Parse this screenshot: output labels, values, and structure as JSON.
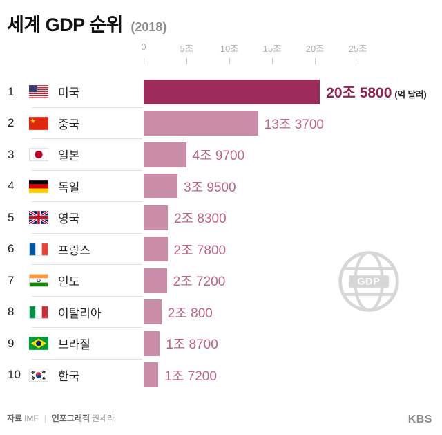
{
  "title": {
    "main": "세계 GDP 순위",
    "year": "(2018)"
  },
  "unit_note": "(억 달러)",
  "watermark": "GDP",
  "footer": {
    "source_label": "자료",
    "source_value": "IMF",
    "divider": "|",
    "credit_label": "인포그래픽",
    "credit_value": "권세라",
    "logo": "KBS"
  },
  "colors": {
    "bar_top": "#9C2B59",
    "bar_rest": "#C98DA8",
    "value_text": "#BE6487",
    "value_top_text": "#8E2450",
    "axis_text": "#B3B3B3"
  },
  "chart_data": {
    "type": "bar",
    "orientation": "horizontal",
    "title": "세계 GDP 순위 (2018)",
    "unit": "억 달러",
    "xlim": [
      0,
      25
    ],
    "x_ticks": [
      "0",
      "5조",
      "10조",
      "15조",
      "20조",
      "25조"
    ],
    "x_tick_values": [
      0,
      5,
      10,
      15,
      20,
      25
    ],
    "legend": "none",
    "grid": "off",
    "categories": [
      "미국",
      "중국",
      "일본",
      "독일",
      "영국",
      "프랑스",
      "인도",
      "이탈리아",
      "브라질",
      "한국"
    ],
    "values_trillion_usd": [
      20.58,
      13.37,
      4.97,
      3.95,
      2.83,
      2.78,
      2.72,
      2.08,
      1.87,
      1.72
    ],
    "rows": [
      {
        "rank": "1",
        "country": "미국",
        "flag": "us",
        "value": 20.58,
        "label": "20조 5800"
      },
      {
        "rank": "2",
        "country": "중국",
        "flag": "cn",
        "value": 13.37,
        "label": "13조 3700"
      },
      {
        "rank": "3",
        "country": "일본",
        "flag": "jp",
        "value": 4.97,
        "label": "4조 9700"
      },
      {
        "rank": "4",
        "country": "독일",
        "flag": "de",
        "value": 3.95,
        "label": "3조 9500"
      },
      {
        "rank": "5",
        "country": "영국",
        "flag": "gb",
        "value": 2.83,
        "label": "2조 8300"
      },
      {
        "rank": "6",
        "country": "프랑스",
        "flag": "fr",
        "value": 2.78,
        "label": "2조 7800"
      },
      {
        "rank": "7",
        "country": "인도",
        "flag": "in",
        "value": 2.72,
        "label": "2조 7200"
      },
      {
        "rank": "8",
        "country": "이탈리아",
        "flag": "it",
        "value": 2.08,
        "label": "2조 800"
      },
      {
        "rank": "9",
        "country": "브라질",
        "flag": "br",
        "value": 1.87,
        "label": "1조 8700"
      },
      {
        "rank": "10",
        "country": "한국",
        "flag": "kr",
        "value": 1.72,
        "label": "1조 7200"
      }
    ]
  }
}
